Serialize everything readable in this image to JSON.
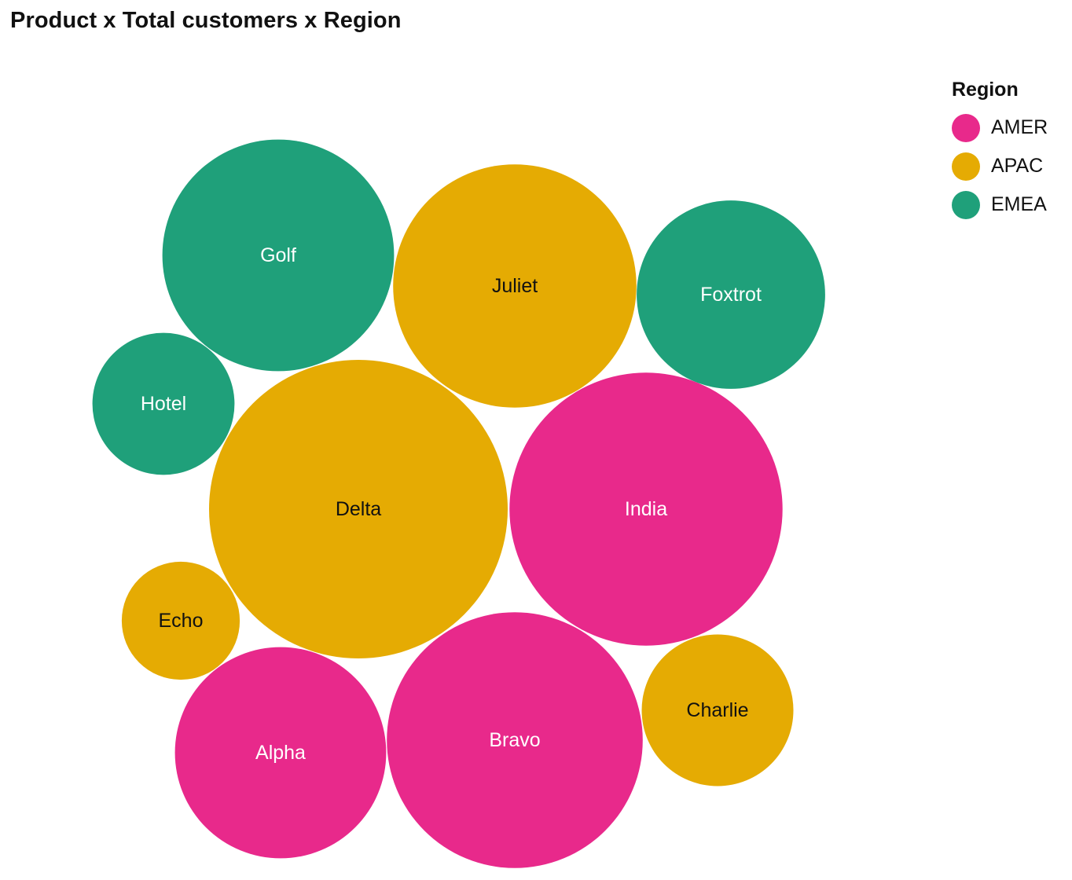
{
  "chart_data": {
    "type": "bubble",
    "title": "Product x Total customers x Region",
    "size_measure": "Total customers",
    "legend": {
      "title": "Region",
      "placement": "top-right",
      "items": [
        {
          "name": "AMER",
          "color": "#E8298B"
        },
        {
          "name": "APAC",
          "color": "#E5AB03"
        },
        {
          "name": "EMEA",
          "color": "#1FA07A"
        }
      ]
    },
    "bubbles": [
      {
        "label": "Golf",
        "region": "EMEA",
        "value": 77
      },
      {
        "label": "Juliet",
        "region": "APAC",
        "value": 85
      },
      {
        "label": "Foxtrot",
        "region": "EMEA",
        "value": 51
      },
      {
        "label": "Hotel",
        "region": "EMEA",
        "value": 29
      },
      {
        "label": "Delta",
        "region": "APAC",
        "value": 128
      },
      {
        "label": "India",
        "region": "AMER",
        "value": 107
      },
      {
        "label": "Echo",
        "region": "APAC",
        "value": 20
      },
      {
        "label": "Alpha",
        "region": "AMER",
        "value": 64
      },
      {
        "label": "Bravo",
        "region": "AMER",
        "value": 94
      },
      {
        "label": "Charlie",
        "region": "APAC",
        "value": 33
      }
    ],
    "label_colors": {
      "AMER": "#ffffff",
      "APAC": "#111111",
      "EMEA": "#ffffff"
    }
  }
}
